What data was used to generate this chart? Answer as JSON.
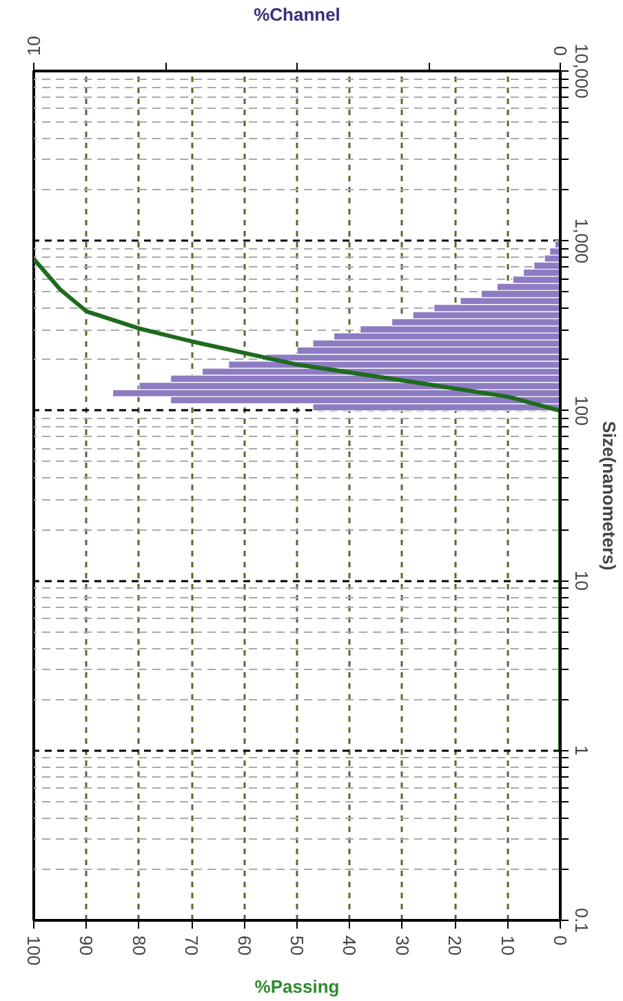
{
  "chart_data": {
    "type": "histogram",
    "orientation": "horizontal",
    "log": "y",
    "grid": true,
    "xlabel": "%Passing",
    "x2label": "%Channel",
    "ylabel": "Size(nanometers)",
    "xlim": [
      100,
      0
    ],
    "xticks": [
      100,
      90,
      80,
      70,
      60,
      50,
      40,
      30,
      20,
      10,
      0
    ],
    "x2lim": [
      10,
      0
    ],
    "x2ticks": [
      10,
      {
        "value": 7.5,
        "label": null
      },
      {
        "value": 5,
        "label": null
      },
      {
        "value": 2.5,
        "label": null
      },
      0
    ],
    "ylim": [
      0.1,
      10000
    ],
    "yticks": [
      {
        "value": 0.1,
        "label": "0.1"
      },
      {
        "value": 0.2,
        "label": null
      },
      {
        "value": 0.3,
        "label": null
      },
      {
        "value": 0.4,
        "label": null
      },
      {
        "value": 0.5,
        "label": null
      },
      {
        "value": 0.6,
        "label": null
      },
      {
        "value": 0.7,
        "label": null
      },
      {
        "value": 0.8,
        "label": null
      },
      {
        "value": 0.9,
        "label": null
      },
      {
        "value": 1,
        "label": "1"
      },
      {
        "value": 2,
        "label": null
      },
      {
        "value": 3,
        "label": null
      },
      {
        "value": 4,
        "label": null
      },
      {
        "value": 5,
        "label": null
      },
      {
        "value": 6,
        "label": null
      },
      {
        "value": 7,
        "label": null
      },
      {
        "value": 8,
        "label": null
      },
      {
        "value": 9,
        "label": null
      },
      {
        "value": 10,
        "label": "10"
      },
      {
        "value": 20,
        "label": null
      },
      {
        "value": 30,
        "label": null
      },
      {
        "value": 40,
        "label": null
      },
      {
        "value": 50,
        "label": null
      },
      {
        "value": 60,
        "label": null
      },
      {
        "value": 70,
        "label": null
      },
      {
        "value": 80,
        "label": null
      },
      {
        "value": 90,
        "label": null
      },
      {
        "value": 100,
        "label": "100"
      },
      {
        "value": 200,
        "label": null
      },
      {
        "value": 300,
        "label": null
      },
      {
        "value": 400,
        "label": null
      },
      {
        "value": 500,
        "label": null
      },
      {
        "value": 600,
        "label": null
      },
      {
        "value": 700,
        "label": null
      },
      {
        "value": 800,
        "label": null
      },
      {
        "value": 900,
        "label": null
      },
      {
        "value": 1000,
        "label": "1,000"
      },
      {
        "value": 2000,
        "label": null
      },
      {
        "value": 3000,
        "label": null
      },
      {
        "value": 4000,
        "label": null
      },
      {
        "value": 5000,
        "label": null
      },
      {
        "value": 6000,
        "label": null
      },
      {
        "value": 7000,
        "label": null
      },
      {
        "value": 8000,
        "label": null
      },
      {
        "value": 9000,
        "label": null
      },
      {
        "value": 10000,
        "label": "10,000"
      }
    ],
    "series": [
      {
        "axis": "x2",
        "color": "#8e7cc3",
        "bins": [
          100,
          110,
          121,
          133,
          147,
          162,
          178,
          196,
          215,
          237,
          261,
          287,
          316,
          348,
          383,
          422,
          464,
          511,
          562,
          619,
          681,
          750,
          825,
          909,
          1000
        ],
        "values": [
          4.7,
          7.4,
          8.5,
          8.0,
          7.4,
          6.8,
          6.3,
          5.6,
          5.0,
          4.7,
          4.3,
          3.8,
          3.2,
          2.8,
          2.4,
          1.9,
          1.5,
          1.2,
          0.9,
          0.7,
          0.5,
          0.3,
          0.2,
          0.1
        ]
      },
      {
        "type": "line",
        "color": "#1e6b1e",
        "x": [
          1,
          100,
          121,
          151,
          187,
          256,
          305,
          385,
          518,
          782
        ],
        "values": [
          0,
          0,
          10,
          30,
          50,
          70,
          80,
          90,
          95,
          100
        ]
      }
    ]
  }
}
